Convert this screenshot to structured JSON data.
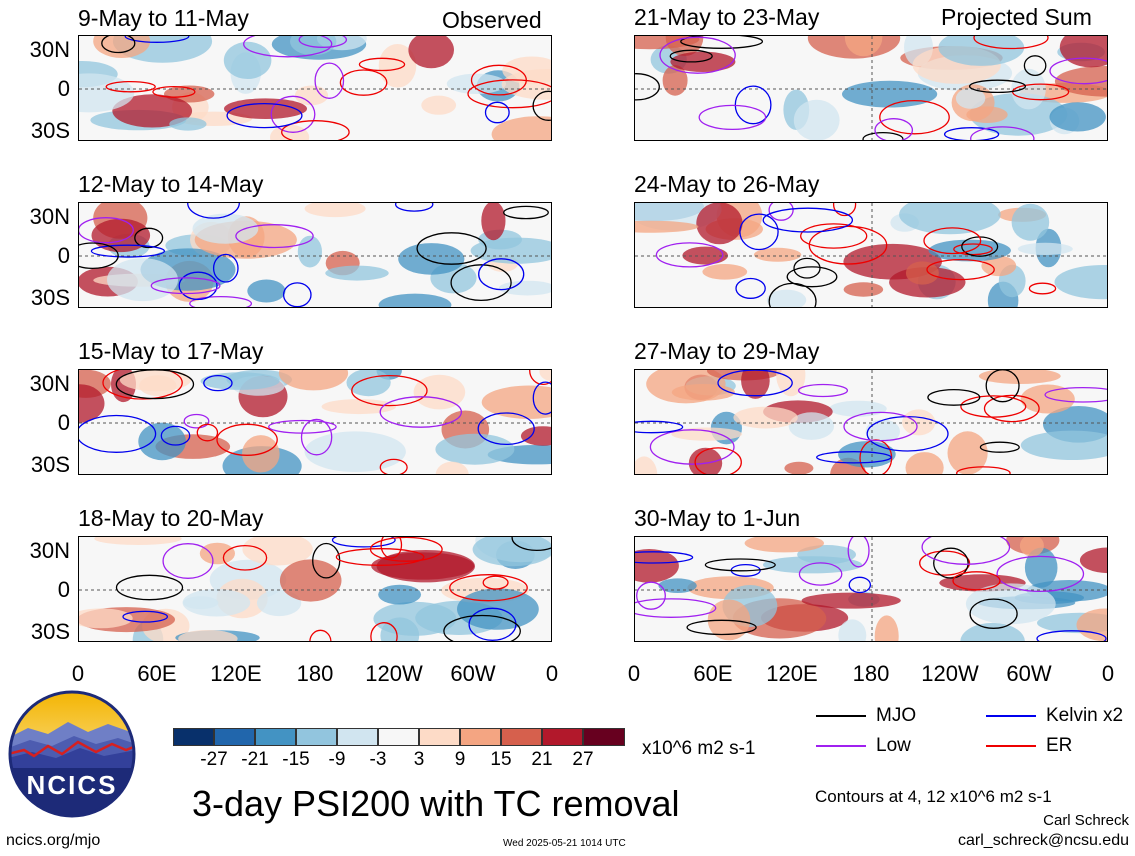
{
  "header": {
    "left_tag": "Observed",
    "right_tag": "Projected Sum"
  },
  "panels_left": [
    {
      "title": "9-May to 11-May"
    },
    {
      "title": "12-May to 14-May"
    },
    {
      "title": "15-May to 17-May"
    },
    {
      "title": "18-May to 20-May"
    }
  ],
  "panels_right": [
    {
      "title": "21-May to 23-May"
    },
    {
      "title": "24-May to 26-May"
    },
    {
      "title": "27-May to 29-May"
    },
    {
      "title": "30-May to 1-Jun"
    }
  ],
  "lat_labels": [
    "30N",
    "0",
    "30S"
  ],
  "lon_labels": [
    "0",
    "60E",
    "120E",
    "180",
    "120W",
    "60W",
    "0"
  ],
  "colorbar": {
    "labels": [
      "-27",
      "-21",
      "-15",
      "-9",
      "-3",
      "3",
      "9",
      "15",
      "21",
      "27"
    ],
    "colors": [
      "#08306b",
      "#2166ac",
      "#4393c3",
      "#92c5de",
      "#d1e5f0",
      "#f7f7f7",
      "#fddbc7",
      "#f4a582",
      "#d6604d",
      "#b2182b",
      "#67001f"
    ],
    "units": "x10^6 m2 s-1"
  },
  "legend": [
    {
      "label": "MJO",
      "color": "#000000"
    },
    {
      "label": "Kelvin x2",
      "color": "#0000ee"
    },
    {
      "label": "Low",
      "color": "#a020f0"
    },
    {
      "label": "ER",
      "color": "#ee0000"
    }
  ],
  "logo": {
    "text": "NCICS"
  },
  "footer": {
    "main_title": "3-day PSI200 with TC removal",
    "contours_note": "Contours at 4, 12 x10^6 m2 s-1",
    "author": "Carl Schreck",
    "email": "carl_schreck@ncsu.edu",
    "url": "ncics.org/mjo",
    "timestamp": "Wed 2025-05-21 1014 UTC"
  }
}
